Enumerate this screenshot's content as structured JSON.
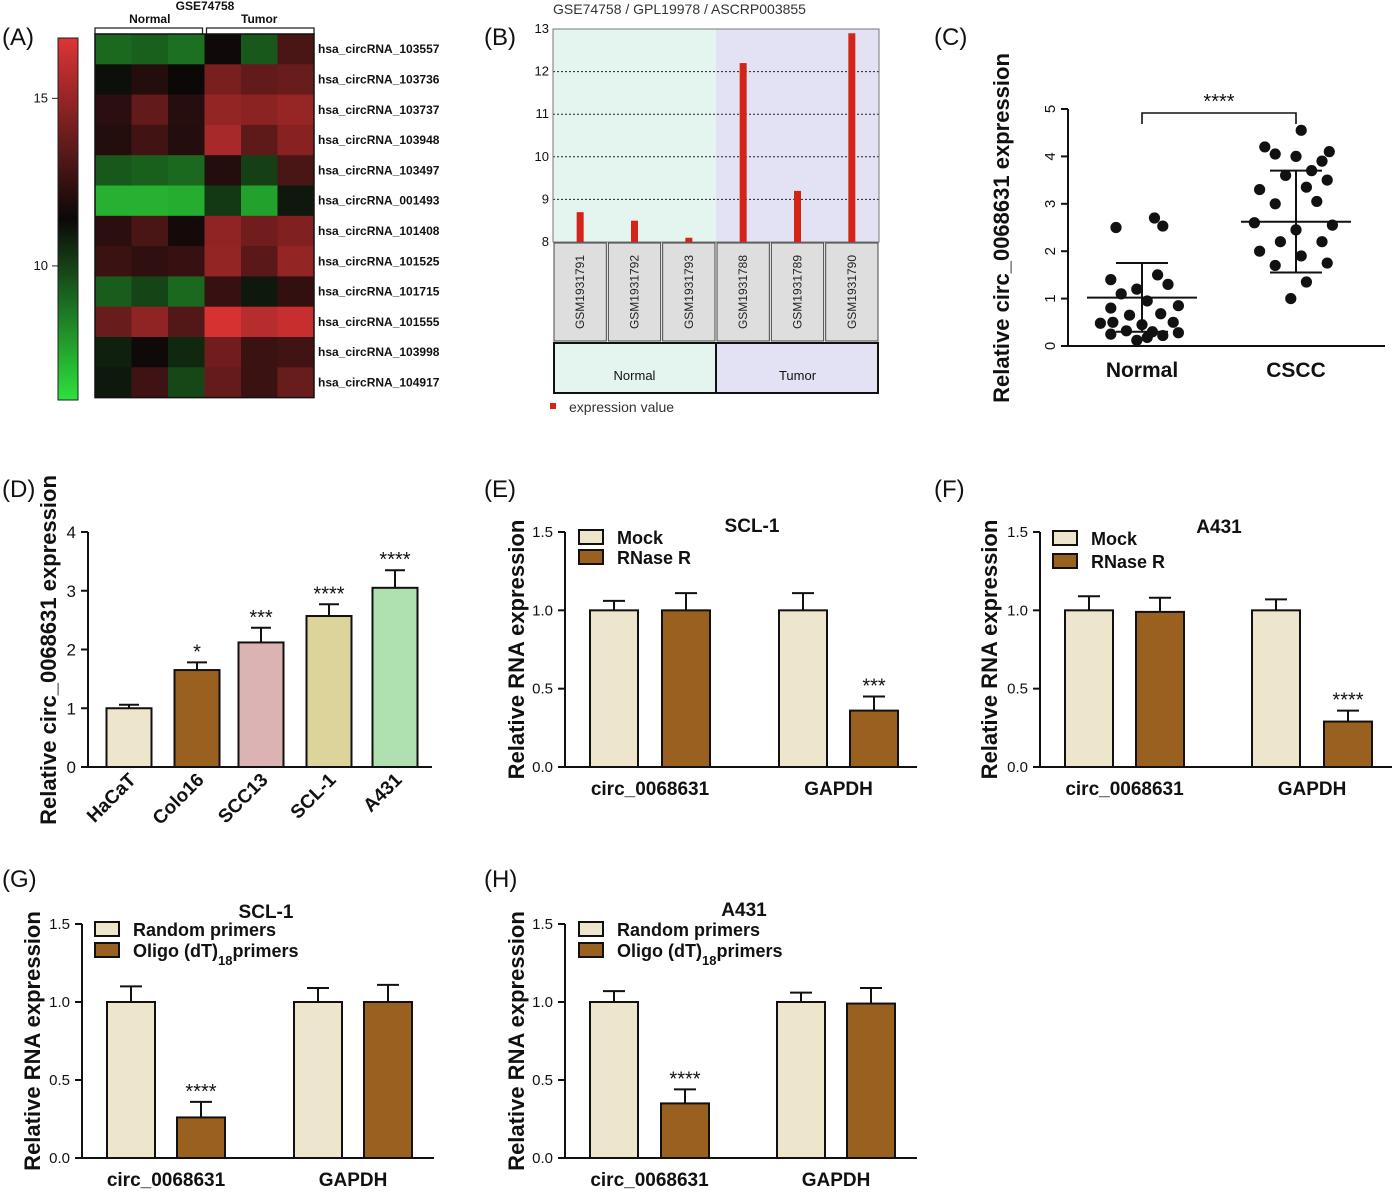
{
  "panels": {
    "A": {
      "label": "(A)"
    },
    "B": {
      "label": "(B)"
    },
    "C": {
      "label": "(C)"
    },
    "D": {
      "label": "(D)"
    },
    "E": {
      "label": "(E)"
    },
    "F": {
      "label": "(F)"
    },
    "G": {
      "label": "(G)"
    },
    "H": {
      "label": "(H)"
    }
  },
  "colors": {
    "mock": "#ede6cc",
    "rnase": "#9a6020",
    "geo_bar": "#d42418",
    "geo_normal_bg": "#e4f4ee",
    "geo_tumor_bg": "#e3e1f4",
    "D_bars": [
      "#ede6cc",
      "#9a6020",
      "#dbb3b3",
      "#dcd49a",
      "#aee0b0"
    ]
  },
  "chart_data": [
    {
      "panel": "A",
      "type": "heatmap",
      "title": "GSE74758",
      "group_labels": [
        "Normal",
        "Tumor"
      ],
      "row_labels": [
        "hsa_circRNA_103557",
        "hsa_circRNA_103736",
        "hsa_circRNA_103737",
        "hsa_circRNA_103948",
        "hsa_circRNA_103497",
        "hsa_circRNA_001493",
        "hsa_circRNA_101408",
        "hsa_circRNA_101525",
        "hsa_circRNA_101715",
        "hsa_circRNA_101555",
        "hsa_circRNA_103998",
        "hsa_circRNA_104917"
      ],
      "highlight_row": 0,
      "highlight_color": "#c0181c",
      "colorbar_ticks": [
        {
          "v": 15,
          "label": "15"
        },
        {
          "v": 10,
          "label": "10"
        }
      ],
      "colorbar_range": [
        6,
        16.8
      ],
      "values": [
        [
          9.0,
          9.2,
          8.8,
          11.5,
          9.4,
          13.0
        ],
        [
          11.2,
          12.0,
          11.4,
          14.2,
          13.6,
          13.8
        ],
        [
          12.2,
          13.6,
          12.1,
          14.9,
          14.7,
          15.0
        ],
        [
          12.0,
          12.8,
          12.0,
          15.4,
          13.5,
          14.6
        ],
        [
          9.4,
          9.2,
          9.0,
          12.0,
          10.0,
          13.0
        ],
        [
          7.2,
          7.2,
          7.3,
          10.2,
          7.6,
          11.0
        ],
        [
          12.2,
          13.0,
          11.6,
          14.8,
          14.0,
          14.4
        ],
        [
          12.6,
          12.3,
          12.5,
          14.9,
          13.4,
          14.9
        ],
        [
          9.3,
          9.9,
          9.0,
          12.5,
          11.0,
          12.4
        ],
        [
          13.8,
          14.8,
          13.2,
          16.6,
          15.8,
          16.2
        ],
        [
          10.8,
          11.5,
          10.6,
          14.0,
          12.6,
          12.8
        ],
        [
          11.0,
          12.7,
          9.8,
          13.7,
          12.6,
          13.8
        ]
      ]
    },
    {
      "panel": "B",
      "type": "bar",
      "title": "GSE74758 / GPL19978 / ASCRP003855",
      "categories": [
        "GSM1931791",
        "GSM1931792",
        "GSM1931793",
        "GSM1931788",
        "GSM1931789",
        "GSM1931790"
      ],
      "values": [
        8.7,
        8.5,
        8.1,
        12.2,
        9.2,
        12.9
      ],
      "groups": [
        "Normal",
        "Tumor"
      ],
      "ylim": [
        8,
        13
      ],
      "yticks": [
        8,
        9,
        10,
        11,
        12,
        13
      ],
      "legend": "expression value"
    },
    {
      "panel": "C",
      "type": "scatter",
      "categories": [
        "Normal",
        "CSCC"
      ],
      "ylabel": "Relative circ_0068631 expression",
      "ylim": [
        0,
        5
      ],
      "yticks": [
        0,
        1,
        2,
        3,
        4,
        5
      ],
      "significance": "****",
      "series": [
        {
          "category": "Normal",
          "mean": 1.02,
          "sd_low": 0.3,
          "sd_high": 1.75,
          "points": [
            [
              -0.25,
              2.5
            ],
            [
              0.2,
              2.53
            ],
            [
              0.12,
              2.7
            ],
            [
              -0.3,
              1.4
            ],
            [
              0.15,
              1.5
            ],
            [
              -0.05,
              1.2
            ],
            [
              0.25,
              1.3
            ],
            [
              -0.2,
              1.1
            ],
            [
              0.05,
              0.95
            ],
            [
              -0.3,
              0.8
            ],
            [
              0.35,
              0.85
            ],
            [
              -0.12,
              0.65
            ],
            [
              0.18,
              0.68
            ],
            [
              -0.28,
              0.5
            ],
            [
              0.0,
              0.45
            ],
            [
              0.3,
              0.5
            ],
            [
              -0.4,
              0.48
            ],
            [
              0.1,
              0.3
            ],
            [
              -0.15,
              0.32
            ],
            [
              0.35,
              0.28
            ],
            [
              -0.3,
              0.25
            ],
            [
              0.05,
              0.18
            ],
            [
              0.2,
              0.22
            ],
            [
              -0.05,
              0.12
            ]
          ]
        },
        {
          "category": "CSCC",
          "mean": 2.62,
          "sd_low": 1.55,
          "sd_high": 3.7,
          "points": [
            [
              0.05,
              4.55
            ],
            [
              0.32,
              4.1
            ],
            [
              -0.3,
              4.2
            ],
            [
              0.0,
              4.0
            ],
            [
              0.25,
              3.9
            ],
            [
              -0.2,
              4.05
            ],
            [
              -0.1,
              3.6
            ],
            [
              0.15,
              3.7
            ],
            [
              0.3,
              3.5
            ],
            [
              -0.35,
              3.3
            ],
            [
              0.1,
              3.35
            ],
            [
              -0.2,
              3.0
            ],
            [
              0.2,
              3.05
            ],
            [
              -0.4,
              2.6
            ],
            [
              0.35,
              2.55
            ],
            [
              0.0,
              2.45
            ],
            [
              -0.15,
              2.2
            ],
            [
              0.25,
              2.2
            ],
            [
              -0.35,
              2.0
            ],
            [
              0.05,
              1.9
            ],
            [
              0.3,
              1.75
            ],
            [
              -0.2,
              1.7
            ],
            [
              0.1,
              1.35
            ],
            [
              -0.05,
              1.0
            ]
          ]
        }
      ]
    },
    {
      "panel": "D",
      "type": "bar",
      "categories": [
        "HaCaT",
        "Colo16",
        "SCC13",
        "SCL-1",
        "A431"
      ],
      "values": [
        1.0,
        1.65,
        2.12,
        2.57,
        3.05
      ],
      "errors": [
        0.06,
        0.13,
        0.25,
        0.2,
        0.3
      ],
      "significance": [
        "",
        "*",
        "***",
        "****",
        "****"
      ],
      "ylabel": "Relative circ_0068631 expression",
      "ylim": [
        0,
        4
      ],
      "yticks": [
        0,
        1,
        2,
        3,
        4
      ]
    },
    {
      "panel": "E",
      "type": "bar",
      "title": "SCL-1",
      "categories": [
        "circ_0068631",
        "GAPDH"
      ],
      "series": [
        {
          "name": "Mock",
          "values": [
            1.0,
            1.0
          ],
          "errors": [
            0.06,
            0.11
          ]
        },
        {
          "name": "RNase R",
          "values": [
            1.0,
            0.36
          ],
          "errors": [
            0.11,
            0.09
          ]
        }
      ],
      "significance": {
        "series": 1,
        "category": 1,
        "label": "***"
      },
      "ylabel": "Relative RNA expression",
      "ylim": [
        0,
        1.5
      ],
      "yticks": [
        "0.0",
        "0.5",
        "1.0",
        "1.5"
      ]
    },
    {
      "panel": "F",
      "type": "bar",
      "title": "A431",
      "categories": [
        "circ_0068631",
        "GAPDH"
      ],
      "series": [
        {
          "name": "Mock",
          "values": [
            1.0,
            1.0
          ],
          "errors": [
            0.09,
            0.07
          ]
        },
        {
          "name": "RNase R",
          "values": [
            0.99,
            0.29
          ],
          "errors": [
            0.09,
            0.07
          ]
        }
      ],
      "significance": {
        "series": 1,
        "category": 1,
        "label": "****"
      },
      "ylabel": "Relative RNA expression",
      "ylim": [
        0,
        1.5
      ],
      "yticks": [
        "0.0",
        "0.5",
        "1.0",
        "1.5"
      ]
    },
    {
      "panel": "G",
      "type": "bar",
      "title": "SCL-1",
      "categories": [
        "circ_0068631",
        "GAPDH"
      ],
      "series": [
        {
          "name": "Random primers",
          "values": [
            1.0,
            1.0
          ],
          "errors": [
            0.1,
            0.09
          ]
        },
        {
          "name": "Oligo (dT)18primers",
          "legend_main": "Oligo (dT)",
          "legend_sub": "18",
          "legend_tail": "primers",
          "values": [
            0.26,
            1.0
          ],
          "errors": [
            0.1,
            0.11
          ]
        }
      ],
      "significance": {
        "series": 1,
        "category": 0,
        "label": "****"
      },
      "ylabel": "Relative RNA expression",
      "ylim": [
        0,
        1.5
      ],
      "yticks": [
        "0.0",
        "0.5",
        "1.0",
        "1.5"
      ]
    },
    {
      "panel": "H",
      "type": "bar",
      "title": "A431",
      "categories": [
        "circ_0068631",
        "GAPDH"
      ],
      "series": [
        {
          "name": "Random primers",
          "values": [
            1.0,
            1.0
          ],
          "errors": [
            0.07,
            0.06
          ]
        },
        {
          "name": "Oligo (dT)18primers",
          "legend_main": "Oligo (dT)",
          "legend_sub": "18",
          "legend_tail": "primers",
          "values": [
            0.35,
            0.99
          ],
          "errors": [
            0.09,
            0.1
          ]
        }
      ],
      "significance": {
        "series": 1,
        "category": 0,
        "label": "****"
      },
      "ylabel": "Relative RNA expression",
      "ylim": [
        0,
        1.5
      ],
      "yticks": [
        "0.0",
        "0.5",
        "1.0",
        "1.5"
      ]
    }
  ]
}
